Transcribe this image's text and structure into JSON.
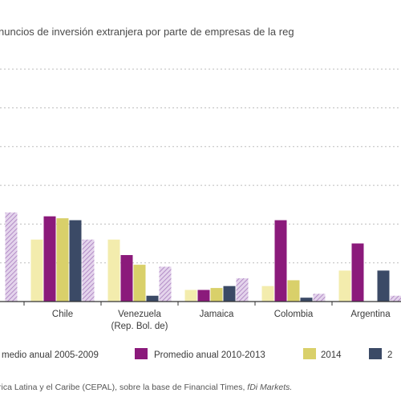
{
  "chart_data": {
    "type": "bar",
    "title": "nuncios de inversión extranjera por parte de empresas de la reg",
    "categories": [
      {
        "id": "cut",
        "label": "",
        "label2": ""
      },
      {
        "id": "chile",
        "label": "Chile",
        "label2": ""
      },
      {
        "id": "venezuela",
        "label": "Venezuela",
        "label2": "(Rep. Bol. de)"
      },
      {
        "id": "jamaica",
        "label": "Jamaica",
        "label2": ""
      },
      {
        "id": "colombia",
        "label": "Colombia",
        "label2": ""
      },
      {
        "id": "argentina",
        "label": "Argentina",
        "label2": ""
      }
    ],
    "series": [
      {
        "name": "medio anual 2005-2009",
        "color": "#f3ecad",
        "values": [
          null,
          1.6,
          1.6,
          0.3,
          0.4,
          0.8
        ]
      },
      {
        "name": "Promedio anual 2010-2013",
        "color": "#8b1a7b",
        "values": [
          null,
          2.2,
          1.2,
          0.3,
          2.1,
          1.5
        ]
      },
      {
        "name": "2014",
        "color": "#d9d06a",
        "values": [
          null,
          2.15,
          0.95,
          0.35,
          0.55,
          null
        ]
      },
      {
        "name": "2",
        "color": "#3b4a66",
        "values": [
          null,
          2.1,
          0.15,
          0.4,
          0.1,
          0.8
        ]
      },
      {
        "name": "",
        "color": "#c9a9d6",
        "pattern": "hatch",
        "values": [
          2.3,
          1.6,
          0.9,
          0.6,
          0.2,
          0.15
        ]
      }
    ],
    "ylim": [
      0,
      6.5
    ],
    "grid": true,
    "legend_position": "bottom"
  },
  "source": {
    "text": "rica Latina y el Caribe (CEPAL), sobre la base de Financial Times, ",
    "italic": "fDi Markets."
  }
}
